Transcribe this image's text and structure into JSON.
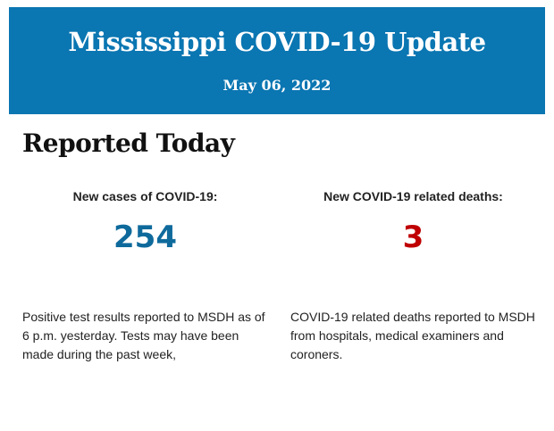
{
  "header": {
    "title": "Mississippi COVID-19 Update",
    "date": "May 06, 2022",
    "color": "#0a76b2"
  },
  "section": {
    "title": "Reported Today"
  },
  "cases": {
    "label": "New cases of COVID-19:",
    "value": "254",
    "color": "#0f6a9c",
    "description": "Positive test results reported to MSDH as of 6 p.m. yesterday. Tests may have been made during the past week,"
  },
  "deaths": {
    "label": "New COVID-19 related deaths:",
    "value": "3",
    "color": "#c00000",
    "description": "COVID-19 related deaths reported to MSDH from hospitals, medical examiners and coroners."
  }
}
